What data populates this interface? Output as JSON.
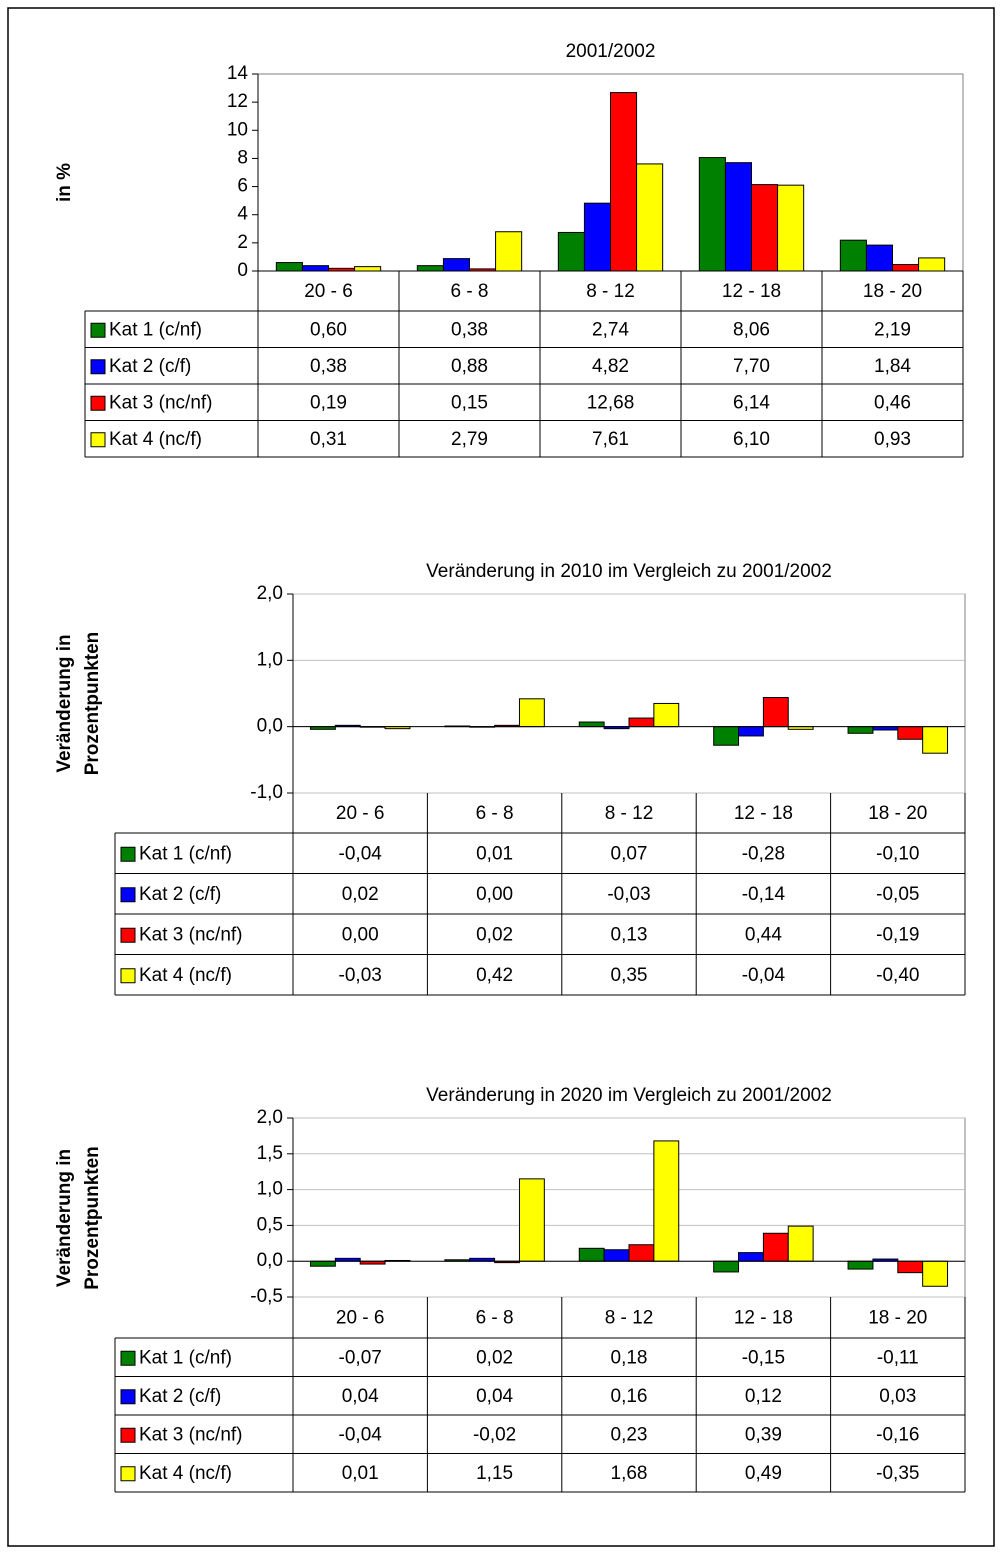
{
  "chart_data": [
    {
      "type": "bar",
      "title": "2001/2002",
      "ylabel": [
        "in %"
      ],
      "categories": [
        "20 - 6",
        "6 - 8",
        "8 - 12",
        "12 - 18",
        "18 - 20"
      ],
      "ylim": [
        0,
        14
      ],
      "yticks": [
        0,
        2,
        4,
        6,
        8,
        10,
        12,
        14
      ],
      "grid": false,
      "series": [
        {
          "name": "Kat 1 (c/nf)",
          "color": "#008000",
          "values": [
            0.6,
            0.38,
            2.74,
            8.06,
            2.19
          ],
          "value_labels": [
            "0,60",
            "0,38",
            "2,74",
            "8,06",
            "2,19"
          ]
        },
        {
          "name": "Kat 2 (c/f)",
          "color": "#0000ff",
          "values": [
            0.38,
            0.88,
            4.82,
            7.7,
            1.84
          ],
          "value_labels": [
            "0,38",
            "0,88",
            "4,82",
            "7,70",
            "1,84"
          ]
        },
        {
          "name": "Kat 3 (nc/nf)",
          "color": "#ff0000",
          "values": [
            0.19,
            0.15,
            12.68,
            6.14,
            0.46
          ],
          "value_labels": [
            "0,19",
            "0,15",
            "12,68",
            "6,14",
            "0,46"
          ]
        },
        {
          "name": "Kat 4 (nc/f)",
          "color": "#ffff00",
          "values": [
            0.31,
            2.79,
            7.61,
            6.1,
            0.93
          ],
          "value_labels": [
            "0,31",
            "2,79",
            "7,61",
            "6,10",
            "0,93"
          ]
        }
      ]
    },
    {
      "type": "bar",
      "title": "Veränderung in 2010 im Vergleich zu 2001/2002",
      "ylabel": [
        "Veränderung in",
        "Prozentpunkten"
      ],
      "categories": [
        "20 - 6",
        "6 - 8",
        "8 - 12",
        "12 - 18",
        "18 - 20"
      ],
      "ylim": [
        -1,
        2
      ],
      "yticks": [
        {
          "value": -1,
          "label": "-1,0"
        },
        {
          "value": 0,
          "label": "0,0"
        },
        {
          "value": 1,
          "label": "1,0"
        },
        {
          "value": 2,
          "label": "2,0"
        }
      ],
      "grid": true,
      "series": [
        {
          "name": "Kat 1 (c/nf)",
          "color": "#008000",
          "values": [
            -0.04,
            0.01,
            0.07,
            -0.28,
            -0.1
          ],
          "value_labels": [
            "-0,04",
            "0,01",
            "0,07",
            "-0,28",
            "-0,10"
          ]
        },
        {
          "name": "Kat 2 (c/f)",
          "color": "#0000ff",
          "values": [
            0.02,
            0.0,
            -0.03,
            -0.14,
            -0.05
          ],
          "value_labels": [
            "0,02",
            "0,00",
            "-0,03",
            "-0,14",
            "-0,05"
          ]
        },
        {
          "name": "Kat 3 (nc/nf)",
          "color": "#ff0000",
          "values": [
            0.0,
            0.02,
            0.13,
            0.44,
            -0.19
          ],
          "value_labels": [
            "0,00",
            "0,02",
            "0,13",
            "0,44",
            "-0,19"
          ]
        },
        {
          "name": "Kat 4 (nc/f)",
          "color": "#ffff00",
          "values": [
            -0.03,
            0.42,
            0.35,
            -0.04,
            -0.4
          ],
          "value_labels": [
            "-0,03",
            "0,42",
            "0,35",
            "-0,04",
            "-0,40"
          ]
        }
      ]
    },
    {
      "type": "bar",
      "title": "Veränderung in 2020 im Vergleich zu 2001/2002",
      "ylabel": [
        "Veränderung in",
        "Prozentpunkten"
      ],
      "categories": [
        "20 - 6",
        "6 - 8",
        "8 - 12",
        "12 - 18",
        "18 - 20"
      ],
      "ylim": [
        -0.5,
        2
      ],
      "yticks": [
        {
          "value": -0.5,
          "label": "-0,5"
        },
        {
          "value": 0,
          "label": "0,0"
        },
        {
          "value": 0.5,
          "label": "0,5"
        },
        {
          "value": 1,
          "label": "1,0"
        },
        {
          "value": 1.5,
          "label": "1,5"
        },
        {
          "value": 2,
          "label": "2,0"
        }
      ],
      "grid": true,
      "series": [
        {
          "name": "Kat 1 (c/nf)",
          "color": "#008000",
          "values": [
            -0.07,
            0.02,
            0.18,
            -0.15,
            -0.11
          ],
          "value_labels": [
            "-0,07",
            "0,02",
            "0,18",
            "-0,15",
            "-0,11"
          ]
        },
        {
          "name": "Kat 2 (c/f)",
          "color": "#0000ff",
          "values": [
            0.04,
            0.04,
            0.16,
            0.12,
            0.03
          ],
          "value_labels": [
            "0,04",
            "0,04",
            "0,16",
            "0,12",
            "0,03"
          ]
        },
        {
          "name": "Kat 3 (nc/nf)",
          "color": "#ff0000",
          "values": [
            -0.04,
            -0.02,
            0.23,
            0.39,
            -0.16
          ],
          "value_labels": [
            "-0,04",
            "-0,02",
            "0,23",
            "0,39",
            "-0,16"
          ]
        },
        {
          "name": "Kat 4 (nc/f)",
          "color": "#ffff00",
          "values": [
            0.01,
            1.15,
            1.68,
            0.49,
            -0.35
          ],
          "value_labels": [
            "0,01",
            "1,15",
            "1,68",
            "0,49",
            "-0,35"
          ]
        }
      ]
    }
  ]
}
